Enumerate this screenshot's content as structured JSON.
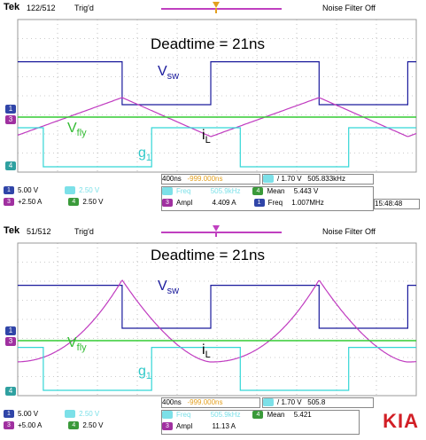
{
  "logo": "KIA",
  "panels": [
    {
      "header": {
        "brand": "Tek",
        "acq": "122/512",
        "trig": "Trig'd",
        "noise": "Noise Filter Off"
      },
      "title": "Deadtime = 21ns",
      "labels": {
        "vsw": "V",
        "vsw_sub": "sw",
        "vfly": "V",
        "vfly_sub": "fly",
        "iL": "i",
        "iL_sub": "L",
        "g1": "g",
        "g1_sub": "1"
      },
      "channels": {
        "c1": "1",
        "c3": "3",
        "c4": "4"
      },
      "footer": {
        "timebase": "400ns",
        "trig_pos": "-999.000ns",
        "trig_level": "/ 1.70 V",
        "trig_freq": "505.833kHz",
        "ch1": "5.00 V",
        "ch2": "2.50 V",
        "ch3": "+2.50 A",
        "ch4": "2.50 V",
        "m1_name": "Freq",
        "m1_val": "505.9kHz",
        "m2_name": "Mean",
        "m2_val": "5.443 V",
        "m3_name": "Ampl",
        "m3_val": "4.409 A",
        "m4_name": "Freq",
        "m4_val": "1.007MHz",
        "clock": "15:48:48"
      }
    },
    {
      "header": {
        "brand": "Tek",
        "acq": "51/512",
        "trig": "Trig'd",
        "noise": "Noise Filter Off"
      },
      "title": "Deadtime = 21ns",
      "labels": {
        "vsw": "V",
        "vsw_sub": "sw",
        "vfly": "V",
        "vfly_sub": "fly",
        "iL": "i",
        "iL_sub": "L",
        "g1": "g",
        "g1_sub": "1"
      },
      "channels": {
        "c1": "1",
        "c3": "3",
        "c4": "4"
      },
      "footer": {
        "timebase": "400ns",
        "trig_pos": "-999.000ns",
        "trig_level": "/ 1.70 V",
        "trig_freq": "505.8",
        "ch1": "5.00 V",
        "ch2": "2.50 V",
        "ch3": "+5.00 A",
        "ch4": "2.50 V",
        "m1_name": "Freq",
        "m1_val": "505.9kHz",
        "m2_name": "Mean",
        "m2_val": "5.421",
        "m3_name": "Ampl",
        "m3_val": "11.13 A"
      }
    }
  ],
  "colors": {
    "vsw": "#1a1a9c",
    "iL": "#c03cc0",
    "vfly": "#33cc33",
    "g1": "#33d6d6",
    "grid": "#9a9a9a"
  },
  "chart_data": [
    {
      "type": "line",
      "title": "Deadtime = 21ns",
      "x_unit": "ns",
      "x_per_div": 400,
      "divisions": 10,
      "series": [
        {
          "name": "vsw",
          "kind": "square",
          "period_ns": 1977,
          "duty": 0.55,
          "high_div": 2.2,
          "low_div": 0
        },
        {
          "name": "iL",
          "kind": "triangle",
          "period_ns": 1977,
          "peak_div": 1.0,
          "valley_div": -1.0
        },
        {
          "name": "vfly",
          "kind": "flat",
          "level_div": 0
        },
        {
          "name": "g1",
          "kind": "square",
          "period_ns": 1977,
          "duty": 0.45,
          "high_div": 2.0,
          "low_div": 0
        }
      ]
    },
    {
      "type": "line",
      "title": "Deadtime = 21ns",
      "x_unit": "ns",
      "x_per_div": 400,
      "divisions": 10,
      "series": [
        {
          "name": "vsw",
          "kind": "square",
          "period_ns": 1977,
          "duty": 0.55,
          "high_div": 2.2,
          "low_div": 0
        },
        {
          "name": "iL",
          "kind": "exp-ramp",
          "period_ns": 1977,
          "peak_div": 3.2,
          "valley_div": -1.0
        },
        {
          "name": "vfly",
          "kind": "flat",
          "level_div": 0
        },
        {
          "name": "g1",
          "kind": "square",
          "period_ns": 1977,
          "duty": 0.45,
          "high_div": 2.2,
          "low_div": 0
        }
      ]
    }
  ]
}
